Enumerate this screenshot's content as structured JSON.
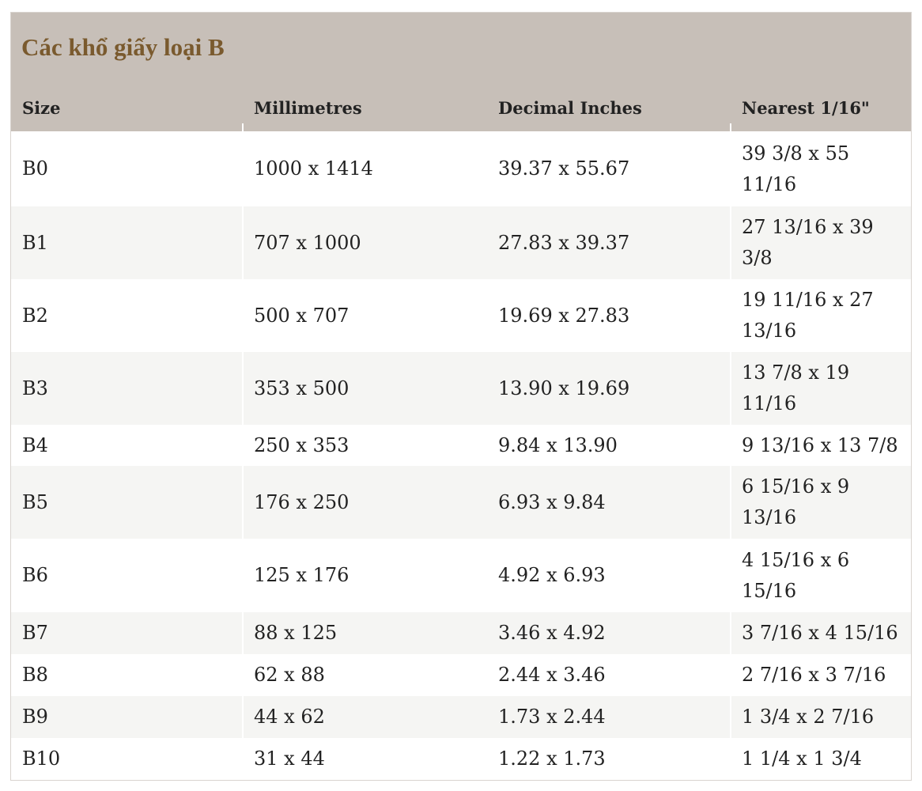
{
  "table": {
    "title": "Các khổ giấy loại B",
    "headers": {
      "size": "Size",
      "millimetres": "Millimetres",
      "decimal_inches": "Decimal Inches",
      "nearest": "Nearest 1/16\""
    },
    "rows": [
      {
        "size": "B0",
        "mm": "1000 x 1414",
        "inches": "39.37 x 55.67",
        "nearest": "39 3/8 x 55 11/16"
      },
      {
        "size": "B1",
        "mm": "707 x 1000",
        "inches": "27.83 x 39.37",
        "nearest": "27 13/16 x 39 3/8"
      },
      {
        "size": "B2",
        "mm": "500 x 707",
        "inches": "19.69 x 27.83",
        "nearest": "19 11/16 x 27 13/16"
      },
      {
        "size": "B3",
        "mm": "353 x 500",
        "inches": "13.90 x 19.69",
        "nearest": "13 7/8 x 19 11/16"
      },
      {
        "size": "B4",
        "mm": "250 x 353",
        "inches": "9.84 x 13.90",
        "nearest": "9 13/16 x 13 7/8"
      },
      {
        "size": "B5",
        "mm": "176 x 250",
        "inches": "6.93 x 9.84",
        "nearest": "6 15/16 x 9 13/16"
      },
      {
        "size": "B6",
        "mm": "125 x 176",
        "inches": "4.92 x 6.93",
        "nearest": "4 15/16 x 6 15/16"
      },
      {
        "size": "B7",
        "mm": "88 x 125",
        "inches": "3.46 x 4.92",
        "nearest": "3 7/16 x 4 15/16"
      },
      {
        "size": "B8",
        "mm": "62 x 88",
        "inches": "2.44 x 3.46",
        "nearest": "2 7/16 x 3 7/16"
      },
      {
        "size": "B9",
        "mm": "44 x 62",
        "inches": "1.73 x 2.44",
        "nearest": "1 3/4 x 2 7/16"
      },
      {
        "size": "B10",
        "mm": "31 x 44",
        "inches": "1.22 x 1.73",
        "nearest": "1 1/4 x 1 3/4"
      }
    ]
  }
}
